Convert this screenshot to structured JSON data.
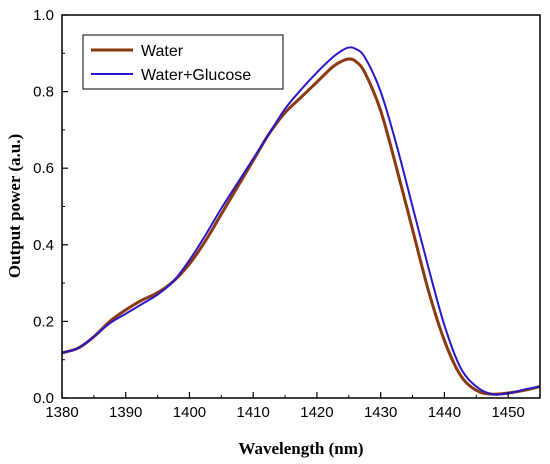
{
  "chart_data": {
    "type": "line",
    "title": "",
    "xlabel": "Wavelength (nm)",
    "ylabel": "Output power (a.u.)",
    "xlim": [
      1380,
      1455
    ],
    "ylim": [
      0,
      1.0
    ],
    "x_ticks": [
      1380,
      1390,
      1400,
      1410,
      1420,
      1430,
      1440,
      1450
    ],
    "x_tick_labels": [
      "1380",
      "1390",
      "1400",
      "1410",
      "1420",
      "1430",
      "1440",
      "1450"
    ],
    "y_ticks": [
      0.0,
      0.2,
      0.4,
      0.6,
      0.8,
      1.0
    ],
    "y_tick_labels": [
      "0.0",
      "0.2",
      "0.4",
      "0.6",
      "0.8",
      "1.0"
    ],
    "grid": false,
    "legend_position": "top-left",
    "series": [
      {
        "name": "Water",
        "color": "#8B3A0F",
        "x": [
          1380,
          1382.5,
          1385,
          1387.5,
          1390,
          1392.5,
          1395,
          1397.5,
          1400,
          1402.5,
          1405,
          1407.5,
          1410,
          1412.5,
          1415,
          1417.5,
          1420,
          1422.5,
          1424,
          1425,
          1426,
          1427.5,
          1430,
          1432.5,
          1435,
          1437.5,
          1440,
          1442.5,
          1445,
          1447.5,
          1450,
          1452.5,
          1455
        ],
        "y": [
          0.118,
          0.13,
          0.16,
          0.2,
          0.23,
          0.255,
          0.275,
          0.305,
          0.35,
          0.41,
          0.48,
          0.55,
          0.62,
          0.69,
          0.745,
          0.785,
          0.825,
          0.865,
          0.88,
          0.885,
          0.88,
          0.85,
          0.75,
          0.6,
          0.44,
          0.28,
          0.15,
          0.06,
          0.02,
          0.01,
          0.013,
          0.02,
          0.03
        ]
      },
      {
        "name": "Water+Glucose",
        "color": "#2A17C9",
        "x": [
          1380,
          1382.5,
          1385,
          1387.5,
          1390,
          1392.5,
          1395,
          1397.5,
          1400,
          1402.5,
          1405,
          1407.5,
          1410,
          1412.5,
          1415,
          1417.5,
          1420,
          1422.5,
          1424,
          1425,
          1426,
          1427.5,
          1430,
          1432.5,
          1435,
          1437.5,
          1440,
          1442.5,
          1445,
          1447.5,
          1450,
          1452.5,
          1455
        ],
        "y": [
          0.118,
          0.13,
          0.16,
          0.195,
          0.22,
          0.245,
          0.27,
          0.305,
          0.36,
          0.425,
          0.495,
          0.56,
          0.625,
          0.69,
          0.755,
          0.805,
          0.85,
          0.89,
          0.908,
          0.915,
          0.912,
          0.89,
          0.8,
          0.66,
          0.5,
          0.34,
          0.19,
          0.08,
          0.03,
          0.01,
          0.012,
          0.022,
          0.03
        ]
      }
    ]
  }
}
